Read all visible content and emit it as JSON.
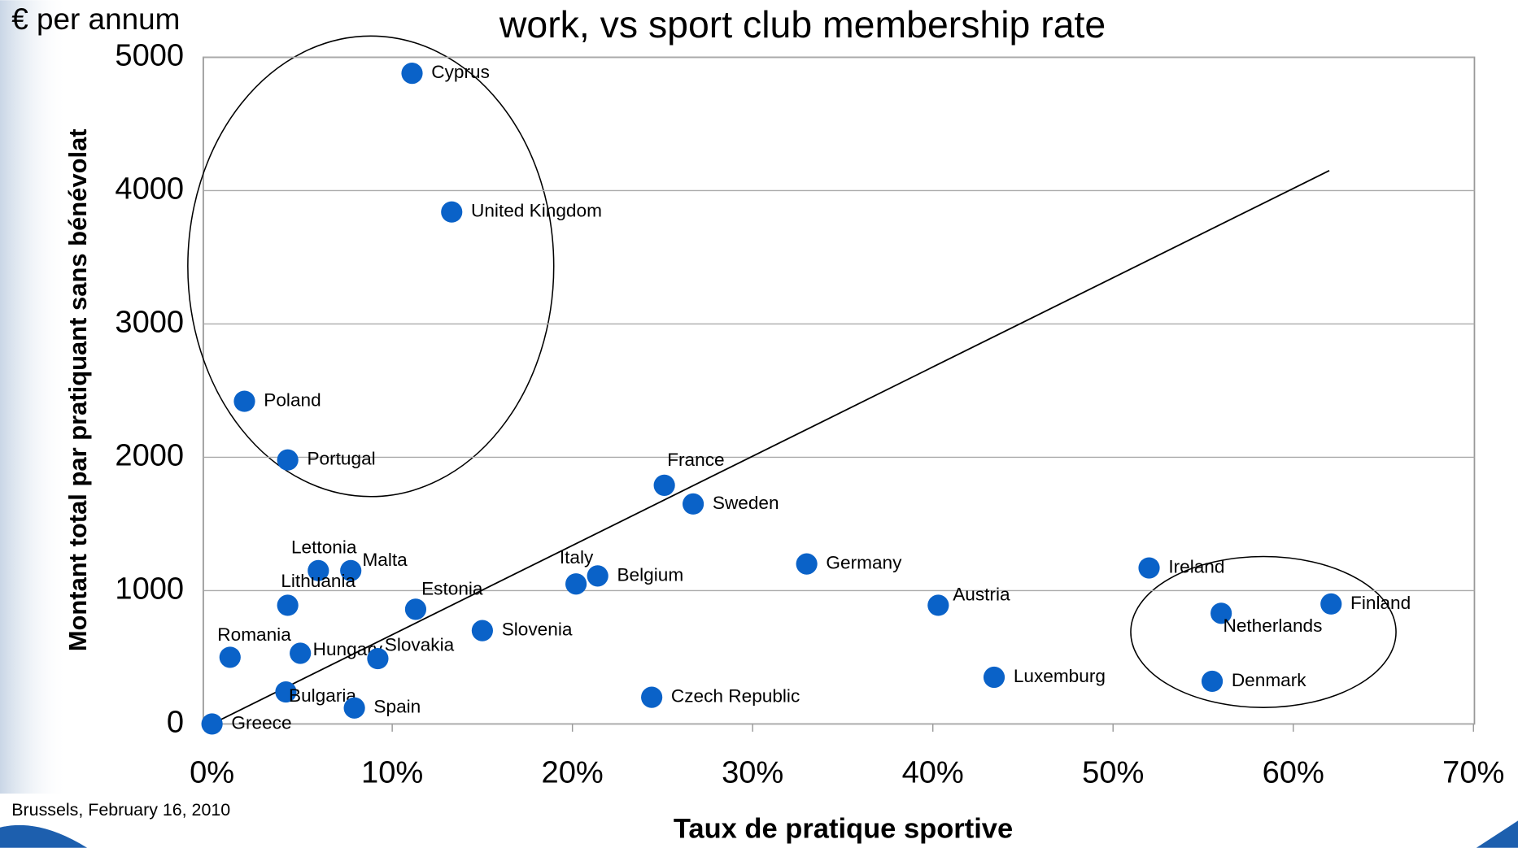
{
  "chart_data": {
    "type": "scatter",
    "title": "work, vs sport club membership rate",
    "y_unit": "€ per annum",
    "x_label": "Taux de pratique sportive",
    "y_label": "Montant total par pratiquant sans bénévolat",
    "footer": "Brussels, February 16, 2010",
    "color": "#0a62c8",
    "grid": true,
    "xlim": [
      0,
      70
    ],
    "ylim": [
      0,
      5000
    ],
    "xticks": [
      {
        "value": 0,
        "label": "0%"
      },
      {
        "value": 10,
        "label": "10%"
      },
      {
        "value": 20,
        "label": "20%"
      },
      {
        "value": 30,
        "label": "30%"
      },
      {
        "value": 40,
        "label": "40%"
      },
      {
        "value": 50,
        "label": "50%"
      },
      {
        "value": 60,
        "label": "60%"
      },
      {
        "value": 70,
        "label": "70%"
      }
    ],
    "yticks": [
      0,
      1000,
      2000,
      3000,
      4000,
      5000
    ],
    "labels": [
      "Cyprus",
      "United Kingdom",
      "Poland",
      "Portugal",
      "France",
      "Sweden",
      "Lettonia",
      "Malta",
      "Lithuania",
      "Italy",
      "Belgium",
      "Germany",
      "Ireland",
      "Estonia",
      "Austria",
      "Finland",
      "Netherlands",
      "Slovenia",
      "Romania",
      "Hungary",
      "Slovakia",
      "Luxemburg",
      "Denmark",
      "Bulgaria",
      "Czech Republic",
      "Spain",
      "Greece"
    ],
    "x": [
      11.1,
      13.3,
      1.8,
      4.2,
      25.1,
      26.7,
      5.9,
      7.7,
      4.2,
      20.2,
      21.4,
      33.0,
      52.0,
      11.3,
      40.3,
      62.1,
      56.0,
      15.0,
      1.0,
      4.9,
      9.2,
      43.4,
      55.5,
      4.1,
      24.4,
      7.9,
      0
    ],
    "y": [
      4880,
      3840,
      2420,
      1980,
      1790,
      1650,
      1150,
      1150,
      890,
      1050,
      1110,
      1200,
      1170,
      860,
      890,
      900,
      830,
      700,
      500,
      530,
      490,
      350,
      320,
      240,
      200,
      120,
      0
    ],
    "trendline": {
      "x": [
        0,
        62
      ],
      "y": [
        0,
        4150
      ]
    }
  }
}
